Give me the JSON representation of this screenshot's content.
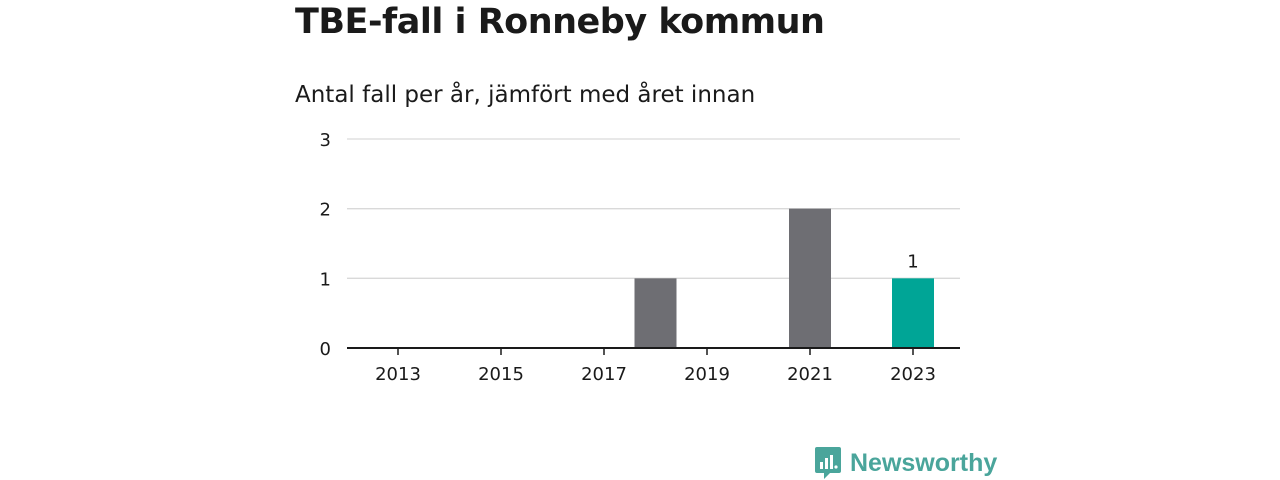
{
  "title": "TBE-fall i Ronneby kommun",
  "subtitle": "Antal fall per år, jämfört med året innan",
  "brand": {
    "name": "Newsworthy",
    "icon": "newsworthy-logo-icon",
    "color": "#4aa59b"
  },
  "chart_data": {
    "type": "bar",
    "categories": [
      "2013",
      "2014",
      "2015",
      "2016",
      "2017",
      "2018",
      "2019",
      "2020",
      "2021",
      "2022",
      "2023"
    ],
    "values": [
      0,
      0,
      0,
      0,
      0,
      1,
      0,
      0,
      2,
      0,
      1
    ],
    "x_tick_labels": [
      "2013",
      "2015",
      "2017",
      "2019",
      "2021",
      "2023"
    ],
    "y_ticks": [
      0,
      1,
      2,
      3
    ],
    "ylim": [
      0,
      3
    ],
    "highlight_category": "2023",
    "data_labels": [
      {
        "category": "2023",
        "text": "1"
      }
    ],
    "colors": {
      "default": "#6e6e73",
      "highlight": "#00a596",
      "grid": "#d9d9d9",
      "axis": "#1a1a1a"
    },
    "grid": true,
    "xlabel": "",
    "ylabel": ""
  }
}
